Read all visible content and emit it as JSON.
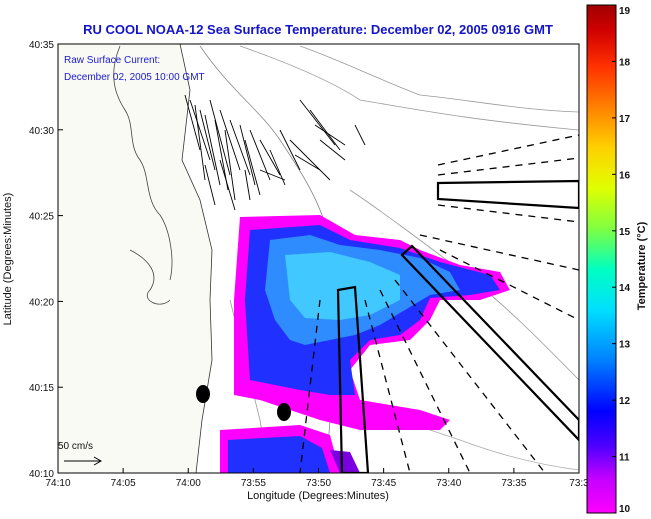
{
  "chart_data": {
    "type": "heatmap",
    "title": "RU COOL   NOAA-12  Sea Surface Temperature:  December 02, 2005 0916 GMT",
    "overlay_title": "Raw Surface Current:",
    "overlay_time": "December 02, 2005 10:00 GMT",
    "xlabel": "Longitude (Degrees:Minutes)",
    "ylabel": "Latitude (Degrees:Minutes)",
    "x_ticks": [
      "74:10",
      "74:05",
      "74:00",
      "73:55",
      "73:50",
      "73:45",
      "73:40",
      "73:35",
      "73:3"
    ],
    "y_ticks": [
      "40:35",
      "40:30",
      "40:25",
      "40:20",
      "40:15",
      "40:10"
    ],
    "xlim": [
      -74.1667,
      -73.5
    ],
    "ylim": [
      40.1667,
      40.5833
    ],
    "colorbar": {
      "title": "Temperature (°C)",
      "ticks": [
        "19",
        "18",
        "17",
        "16",
        "15",
        "14",
        "13",
        "12",
        "11",
        "10"
      ],
      "range": [
        10,
        19
      ],
      "colors": [
        "#ff00ff",
        "#b000e0",
        "#2020ff",
        "#0060ff",
        "#00c0ff",
        "#00ffe0",
        "#40ff80",
        "#c0ff00",
        "#ffff00",
        "#ffc000",
        "#ff7000",
        "#ff2000",
        "#c00000",
        "#800000"
      ]
    },
    "scale_label": "50 cm/s",
    "palette": {
      "magenta": "#ff00ff",
      "purple": "#a000f0",
      "blue": "#2030ff",
      "lightblue": "#2fa6ff",
      "cyan": "#40c8ff"
    }
  }
}
